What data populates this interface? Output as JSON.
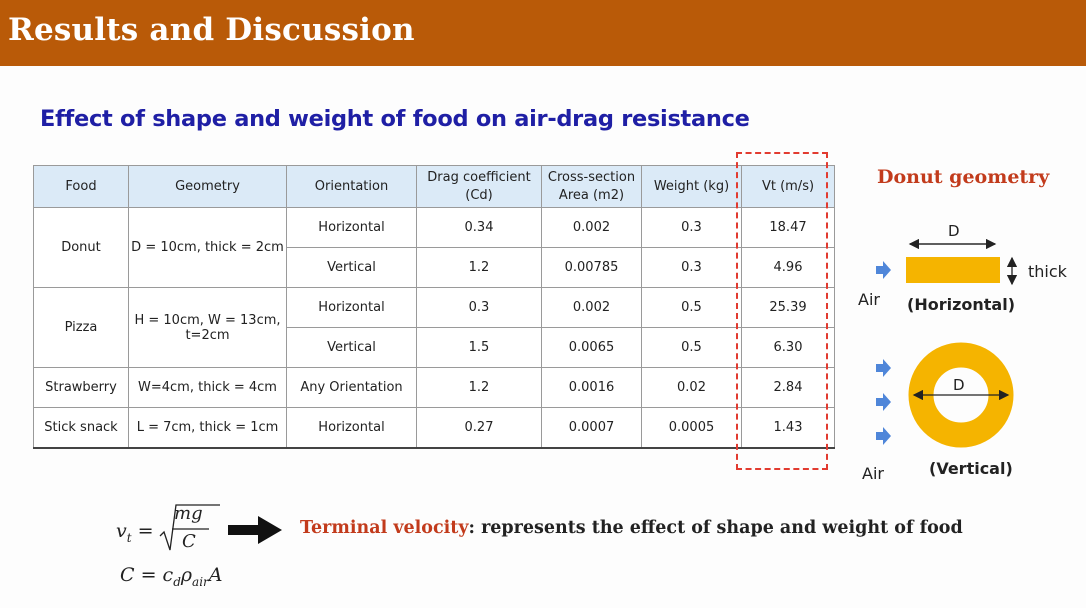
{
  "header": {
    "title": "Results and Discussion"
  },
  "subtitle": "Effect of shape and weight of food on air-drag resistance",
  "table": {
    "headers": {
      "food": "Food",
      "geometry": "Geometry",
      "orientation": "Orientation",
      "drag_l1": "Drag coefficient",
      "drag_l2": "(Cd)",
      "cross_l1": "Cross-section",
      "cross_l2": "Area (m2)",
      "weight": "Weight (kg)",
      "vt": "Vt (m/s)"
    },
    "donut": {
      "food": "Donut",
      "geometry": "D = 10cm, thick = 2cm",
      "rows": [
        {
          "orientation": "Horizontal",
          "cd": "0.34",
          "area": "0.002",
          "weight": "0.3",
          "vt": "18.47"
        },
        {
          "orientation": "Vertical",
          "cd": "1.2",
          "area": "0.00785",
          "weight": "0.3",
          "vt": "4.96"
        }
      ]
    },
    "pizza": {
      "food": "Pizza",
      "geometry_l1": "H = 10cm, W = 13cm,",
      "geometry_l2": "t=2cm",
      "rows": [
        {
          "orientation": "Horizontal",
          "cd": "0.3",
          "area": "0.002",
          "weight": "0.5",
          "vt": "25.39"
        },
        {
          "orientation": "Vertical",
          "cd": "1.5",
          "area": "0.0065",
          "weight": "0.5",
          "vt": "6.30"
        }
      ]
    },
    "strawberry": {
      "food": "Strawberry",
      "geometry": "W=4cm, thick = 4cm",
      "orientation": "Any Orientation",
      "cd": "1.2",
      "area": "0.0016",
      "weight": "0.02",
      "vt": "2.84"
    },
    "stick": {
      "food": "Stick snack",
      "geometry": "L = 7cm, thick = 1cm",
      "orientation": "Horizontal",
      "cd": "0.27",
      "area": "0.0007",
      "weight": "0.0005",
      "vt": "1.43"
    }
  },
  "donut_geometry": {
    "title": "Donut geometry",
    "d_top": "D",
    "thick": "thick",
    "air_top": "Air",
    "horizontal": "(Horizontal)",
    "d_ring": "D",
    "air_bottom": "Air",
    "vertical": "(Vertical)"
  },
  "formula": {
    "vt_lhs": "v",
    "vt_sub": "t",
    "equals": " =",
    "num": "mg",
    "den": "C",
    "c_line": "C = c",
    "c_sub1": "d",
    "rho": "ρ",
    "c_sub2": "air",
    "c_tail": "A"
  },
  "terminal": {
    "label": "Terminal velocity",
    "text": ": represents the effect of shape and weight of food"
  },
  "colors": {
    "header": "#b95a08",
    "subtitle": "#1f1fa5",
    "accent_red": "#c23b1c",
    "donut": "#f5b400",
    "arrow": "#4f86d9",
    "dashed_box": "#e23b30"
  }
}
